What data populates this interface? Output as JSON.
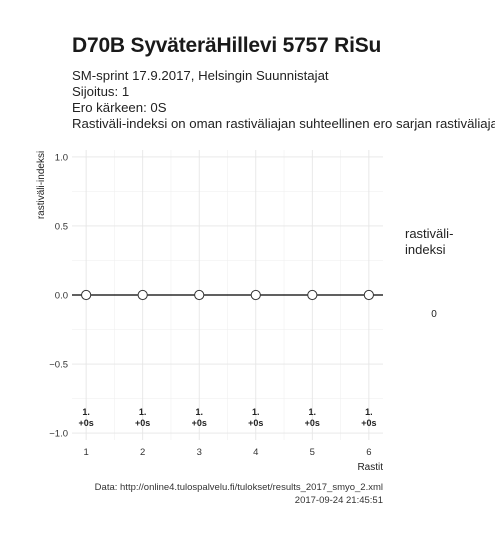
{
  "title": "D70B SyväteräHillevi 5757 RiSu",
  "subtitle": {
    "line1": "SM-sprint 17.9.2017, Helsingin Suunnistajat",
    "line2": "Sijoitus: 1",
    "line3": "Ero kärkeen: 0S",
    "line4": "Rastiväli-indeksi on oman rastiväliajan suhteellinen ero sarjan rastiväliajan"
  },
  "legend": {
    "title_line1": "rastiväli-",
    "title_line2": "indeksi",
    "value": "0"
  },
  "footer": {
    "source": "Data: http://online4.tulospalvelu.fi/tulokset/results_2017_smyo_2.xml",
    "timestamp": "2017-09-24 21:45:51"
  },
  "chart_data": {
    "type": "scatter",
    "x": [
      1,
      2,
      3,
      4,
      5,
      6
    ],
    "y": [
      0,
      0,
      0,
      0,
      0,
      0
    ],
    "labels": [
      {
        "line1": "1.",
        "line2": "+0s"
      },
      {
        "line1": "1.",
        "line2": "+0s"
      },
      {
        "line1": "1.",
        "line2": "+0s"
      },
      {
        "line1": "1.",
        "line2": "+0s"
      },
      {
        "line1": "1.",
        "line2": "+0s"
      },
      {
        "line1": "1.",
        "line2": "+0s"
      }
    ],
    "xlabel": "Rastit",
    "ylabel": "rastiväli-indeksi",
    "xlim": [
      0.75,
      6.25
    ],
    "ylim": [
      -1.05,
      1.05
    ],
    "xticks": [
      1,
      2,
      3,
      4,
      5,
      6
    ],
    "yticks": [
      -1.0,
      -0.5,
      0.0,
      0.5,
      1.0
    ],
    "ytick_labels": [
      "−1.0",
      "−0.5",
      "0.0",
      "0.5",
      "1.0"
    ],
    "reference_line_y": 0,
    "grid": true,
    "point_color": "#ffffff",
    "point_stroke": "#333333",
    "line_color": "#000000",
    "grid_color": "#e6e6e6"
  }
}
